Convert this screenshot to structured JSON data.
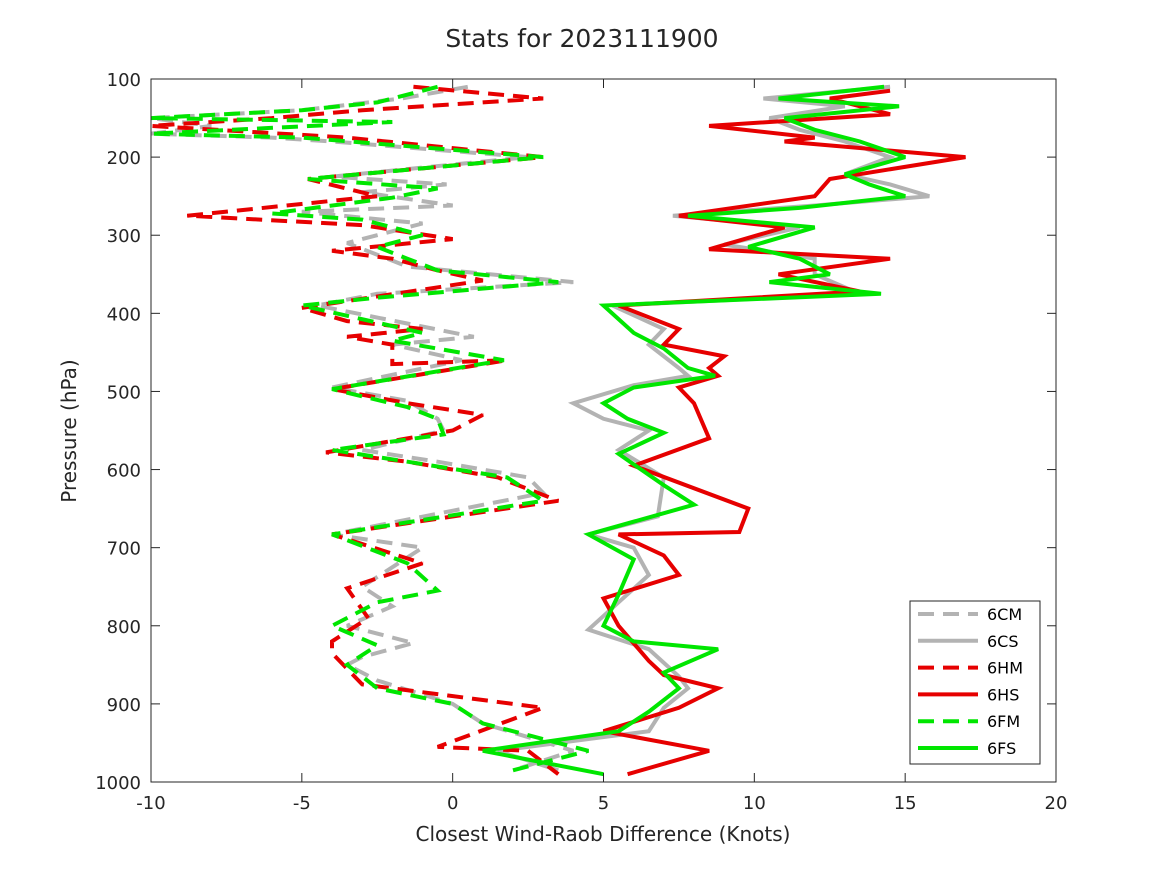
{
  "chart_data": {
    "type": "line",
    "title": "Stats for 2023111900",
    "xlabel": "Closest Wind-Raob Difference (Knots)",
    "ylabel": "Pressure (hPa)",
    "xlim": [
      -10,
      20
    ],
    "ylim": [
      100,
      1000
    ],
    "y_reversed": true,
    "x_ticks": [
      -10,
      -5,
      0,
      5,
      10,
      15,
      20
    ],
    "y_ticks": [
      100,
      200,
      300,
      400,
      500,
      600,
      700,
      800,
      900,
      1000
    ],
    "grid": false,
    "legend_position": "bottom-right",
    "series": [
      {
        "name": "6CM",
        "color": "#b3b3b3",
        "dashed": true,
        "points": [
          [
            0.5,
            110
          ],
          [
            -1.7,
            125
          ],
          [
            -5.0,
            140
          ],
          [
            -10.0,
            150
          ],
          [
            -8.0,
            160
          ],
          [
            -10.0,
            170
          ],
          [
            -6.0,
            175
          ],
          [
            -4.0,
            180
          ],
          [
            2.5,
            200
          ],
          [
            -4.0,
            225
          ],
          [
            -0.2,
            235
          ],
          [
            -3.0,
            245
          ],
          [
            0.0,
            262
          ],
          [
            -5.0,
            270
          ],
          [
            -1.0,
            285
          ],
          [
            -3.5,
            310
          ],
          [
            -1.5,
            340
          ],
          [
            4.0,
            360
          ],
          [
            -2.5,
            375
          ],
          [
            -4.5,
            390
          ],
          [
            0.7,
            430
          ],
          [
            -2.0,
            440
          ],
          [
            0.3,
            460
          ],
          [
            -4.0,
            495
          ],
          [
            -1.5,
            512
          ],
          [
            -0.5,
            535
          ],
          [
            -0.3,
            550
          ],
          [
            -3.0,
            575
          ],
          [
            -0.5,
            590
          ],
          [
            2.5,
            610
          ],
          [
            3.0,
            630
          ],
          [
            -4.0,
            683
          ],
          [
            -1.0,
            700
          ],
          [
            -3.0,
            750
          ],
          [
            -2.0,
            775
          ],
          [
            -3.5,
            800
          ],
          [
            -1.3,
            822
          ],
          [
            -3.0,
            840
          ],
          [
            -3.5,
            850
          ],
          [
            -2.5,
            870
          ],
          [
            0.0,
            900
          ],
          [
            1.0,
            925
          ],
          [
            4.0,
            960
          ],
          [
            2.0,
            985
          ]
        ]
      },
      {
        "name": "6CS",
        "color": "#b3b3b3",
        "dashed": false,
        "points": [
          [
            14.5,
            110
          ],
          [
            10.3,
            125
          ],
          [
            13.0,
            135
          ],
          [
            10.5,
            150
          ],
          [
            11.5,
            165
          ],
          [
            13.0,
            180
          ],
          [
            14.5,
            200
          ],
          [
            13.0,
            222
          ],
          [
            14.5,
            235
          ],
          [
            15.8,
            250
          ],
          [
            12.0,
            262
          ],
          [
            7.3,
            275
          ],
          [
            11.5,
            290
          ],
          [
            9.0,
            312
          ],
          [
            12.0,
            330
          ],
          [
            12.0,
            350
          ],
          [
            13.5,
            375
          ],
          [
            5.3,
            390
          ],
          [
            7.0,
            420
          ],
          [
            6.5,
            440
          ],
          [
            7.5,
            470
          ],
          [
            7.8,
            480
          ],
          [
            6.0,
            492
          ],
          [
            4.0,
            515
          ],
          [
            5.0,
            535
          ],
          [
            6.5,
            550
          ],
          [
            5.5,
            575
          ],
          [
            7.0,
            610
          ],
          [
            6.8,
            660
          ],
          [
            4.5,
            683
          ],
          [
            6.0,
            700
          ],
          [
            6.5,
            735
          ],
          [
            5.5,
            770
          ],
          [
            4.5,
            805
          ],
          [
            6.5,
            830
          ],
          [
            7.5,
            865
          ],
          [
            7.8,
            880
          ],
          [
            7.0,
            905
          ],
          [
            6.5,
            935
          ],
          [
            1.5,
            960
          ],
          [
            3.5,
            985
          ]
        ]
      },
      {
        "name": "6HM",
        "color": "#e60000",
        "dashed": true,
        "points": [
          [
            -1.3,
            110
          ],
          [
            3.0,
            125
          ],
          [
            -3.0,
            140
          ],
          [
            -6.0,
            150
          ],
          [
            -10.0,
            160
          ],
          [
            -3.5,
            175
          ],
          [
            3.0,
            200
          ],
          [
            -4.8,
            228
          ],
          [
            -2.5,
            250
          ],
          [
            -8.8,
            275
          ],
          [
            -3.0,
            287
          ],
          [
            0.0,
            305
          ],
          [
            -4.0,
            320
          ],
          [
            -2.0,
            330
          ],
          [
            -0.5,
            345
          ],
          [
            1.0,
            358
          ],
          [
            -5.0,
            393
          ],
          [
            -3.5,
            410
          ],
          [
            -1.0,
            420
          ],
          [
            -3.5,
            430
          ],
          [
            -2.0,
            440
          ],
          [
            -2.0,
            465
          ],
          [
            1.8,
            460
          ],
          [
            -4.0,
            497
          ],
          [
            -1.5,
            515
          ],
          [
            1.0,
            530
          ],
          [
            0.0,
            550
          ],
          [
            -4.2,
            578
          ],
          [
            -1.5,
            590
          ],
          [
            1.5,
            610
          ],
          [
            3.5,
            640
          ],
          [
            -4.0,
            683
          ],
          [
            -1.0,
            720
          ],
          [
            -3.5,
            752
          ],
          [
            -2.8,
            790
          ],
          [
            -4.0,
            820
          ],
          [
            -4.0,
            835
          ],
          [
            -3.5,
            855
          ],
          [
            -3.0,
            875
          ],
          [
            3.0,
            905
          ],
          [
            -0.5,
            955
          ],
          [
            2.5,
            960
          ],
          [
            3.5,
            990
          ]
        ]
      },
      {
        "name": "6HS",
        "color": "#e60000",
        "dashed": false,
        "points": [
          [
            14.5,
            115
          ],
          [
            12.5,
            125
          ],
          [
            14.5,
            145
          ],
          [
            8.5,
            160
          ],
          [
            12.0,
            175
          ],
          [
            11.0,
            180
          ],
          [
            17.0,
            200
          ],
          [
            12.5,
            228
          ],
          [
            12.0,
            250
          ],
          [
            7.5,
            275
          ],
          [
            11.0,
            290
          ],
          [
            8.5,
            318
          ],
          [
            14.5,
            330
          ],
          [
            10.8,
            350
          ],
          [
            13.5,
            372
          ],
          [
            5.5,
            390
          ],
          [
            7.5,
            420
          ],
          [
            7.0,
            440
          ],
          [
            9.0,
            455
          ],
          [
            8.5,
            470
          ],
          [
            8.8,
            480
          ],
          [
            7.5,
            495
          ],
          [
            8.0,
            515
          ],
          [
            8.5,
            560
          ],
          [
            6.0,
            595
          ],
          [
            9.8,
            650
          ],
          [
            9.5,
            680
          ],
          [
            5.5,
            683
          ],
          [
            7.0,
            710
          ],
          [
            7.5,
            735
          ],
          [
            5.0,
            765
          ],
          [
            5.5,
            800
          ],
          [
            6.5,
            845
          ],
          [
            7.0,
            863
          ],
          [
            8.8,
            880
          ],
          [
            7.5,
            905
          ],
          [
            5.0,
            935
          ],
          [
            8.5,
            960
          ],
          [
            5.8,
            990
          ]
        ]
      },
      {
        "name": "6FM",
        "color": "#00e600",
        "dashed": true,
        "points": [
          [
            -0.5,
            110
          ],
          [
            -2.5,
            130
          ],
          [
            -5.0,
            140
          ],
          [
            -10.0,
            150
          ],
          [
            -2.0,
            155
          ],
          [
            -10.0,
            170
          ],
          [
            -5.0,
            175
          ],
          [
            3.0,
            200
          ],
          [
            -4.8,
            228
          ],
          [
            -0.5,
            240
          ],
          [
            -2.0,
            252
          ],
          [
            -6.0,
            272
          ],
          [
            -3.0,
            280
          ],
          [
            -1.0,
            300
          ],
          [
            -2.5,
            315
          ],
          [
            -1.5,
            330
          ],
          [
            -0.5,
            345
          ],
          [
            3.5,
            360
          ],
          [
            -2.5,
            380
          ],
          [
            -5.0,
            390
          ],
          [
            -1.0,
            425
          ],
          [
            -2.0,
            435
          ],
          [
            1.7,
            460
          ],
          [
            -4.0,
            497
          ],
          [
            -1.5,
            520
          ],
          [
            -0.5,
            535
          ],
          [
            -0.3,
            555
          ],
          [
            -4.0,
            575
          ],
          [
            -1.5,
            590
          ],
          [
            1.8,
            610
          ],
          [
            3.0,
            640
          ],
          [
            -4.0,
            683
          ],
          [
            -1.5,
            720
          ],
          [
            -0.5,
            755
          ],
          [
            -2.5,
            770
          ],
          [
            -4.0,
            800
          ],
          [
            -2.5,
            825
          ],
          [
            -3.5,
            850
          ],
          [
            -2.5,
            880
          ],
          [
            0.0,
            900
          ],
          [
            1.0,
            925
          ],
          [
            4.5,
            960
          ],
          [
            2.0,
            985
          ]
        ]
      },
      {
        "name": "6FS",
        "color": "#00e600",
        "dashed": false,
        "points": [
          [
            14.3,
            110
          ],
          [
            10.8,
            125
          ],
          [
            14.8,
            135
          ],
          [
            11.0,
            150
          ],
          [
            12.0,
            165
          ],
          [
            13.5,
            180
          ],
          [
            15.0,
            200
          ],
          [
            13.0,
            222
          ],
          [
            13.8,
            235
          ],
          [
            15.0,
            250
          ],
          [
            11.5,
            265
          ],
          [
            7.8,
            275
          ],
          [
            12.0,
            290
          ],
          [
            9.8,
            315
          ],
          [
            11.5,
            330
          ],
          [
            12.5,
            350
          ],
          [
            10.5,
            360
          ],
          [
            14.2,
            375
          ],
          [
            5.0,
            390
          ],
          [
            6.0,
            425
          ],
          [
            7.0,
            445
          ],
          [
            7.8,
            470
          ],
          [
            8.7,
            480
          ],
          [
            6.0,
            495
          ],
          [
            5.0,
            515
          ],
          [
            5.8,
            535
          ],
          [
            7.0,
            553
          ],
          [
            5.5,
            580
          ],
          [
            7.0,
            620
          ],
          [
            8.0,
            645
          ],
          [
            4.5,
            683
          ],
          [
            6.0,
            715
          ],
          [
            5.5,
            760
          ],
          [
            5.0,
            800
          ],
          [
            6.0,
            820
          ],
          [
            8.8,
            830
          ],
          [
            7.0,
            860
          ],
          [
            7.5,
            880
          ],
          [
            6.5,
            910
          ],
          [
            5.5,
            935
          ],
          [
            1.0,
            960
          ],
          [
            5.0,
            990
          ]
        ]
      }
    ]
  }
}
